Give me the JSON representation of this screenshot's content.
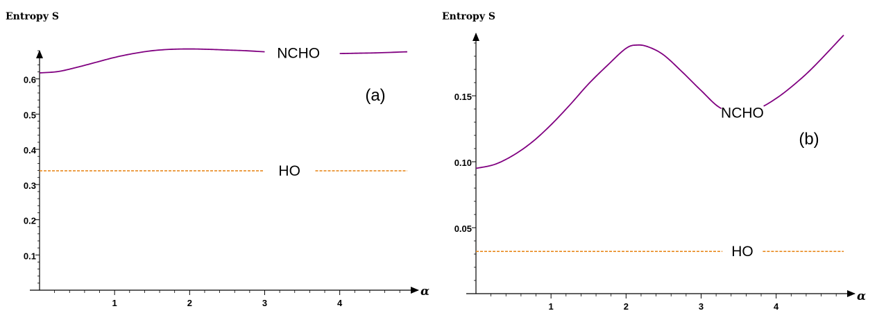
{
  "chart_data": [
    {
      "type": "line",
      "panel_label": "(a)",
      "ylabel": "Entropy   S",
      "xlabel": "α",
      "xlim": [
        0,
        4.9
      ],
      "ylim": [
        0,
        0.69
      ],
      "x_ticks": [
        1,
        2,
        3,
        4
      ],
      "y_ticks": [
        0.1,
        0.2,
        0.3,
        0.4,
        0.5,
        0.6
      ],
      "y_tick_labels": [
        "0.1",
        "0.2",
        "0.3",
        "0.4",
        "0.5",
        "0.6"
      ],
      "x_tick_labels": [
        "1",
        "2",
        "3",
        "4"
      ],
      "series": [
        {
          "name": "NCHO",
          "color": "#800080",
          "style": "solid",
          "x": [
            0,
            0.25,
            0.5,
            0.75,
            1.0,
            1.25,
            1.5,
            1.75,
            2.0,
            2.25,
            2.5,
            2.75,
            3.0,
            3.25,
            3.5,
            3.75,
            4.0,
            4.25,
            4.5,
            4.9
          ],
          "y": [
            0.617,
            0.621,
            0.633,
            0.647,
            0.661,
            0.672,
            0.68,
            0.684,
            0.685,
            0.684,
            0.682,
            0.68,
            0.677,
            0.675,
            0.673,
            0.672,
            0.672,
            0.673,
            0.674,
            0.677
          ],
          "label_at_x": 3.45,
          "label_gap": [
            3.0,
            3.98
          ]
        },
        {
          "name": "HO",
          "color": "#e8891e",
          "style": "dashed",
          "x": [
            0,
            4.9
          ],
          "y": [
            0.339,
            0.339
          ],
          "label_at_x": 3.33,
          "label_gap": [
            3.0,
            3.65
          ]
        }
      ]
    },
    {
      "type": "line",
      "panel_label": "(b)",
      "ylabel": "Entropy   S",
      "xlabel": "α",
      "xlim": [
        0,
        4.9
      ],
      "ylim": [
        0,
        0.2
      ],
      "x_ticks": [
        1,
        2,
        3,
        4
      ],
      "y_ticks": [
        0.05,
        0.1,
        0.15
      ],
      "y_tick_labels": [
        "0.05",
        "0.10",
        "0.15"
      ],
      "x_tick_labels": [
        "1",
        "2",
        "3",
        "4"
      ],
      "series": [
        {
          "name": "NCHO",
          "color": "#800080",
          "style": "solid",
          "x": [
            0,
            0.25,
            0.5,
            0.75,
            1.0,
            1.25,
            1.5,
            1.75,
            2.0,
            2.15,
            2.3,
            2.5,
            2.75,
            3.0,
            3.25,
            3.5,
            3.75,
            4.0,
            4.25,
            4.5,
            4.9
          ],
          "y": [
            0.095,
            0.098,
            0.105,
            0.115,
            0.128,
            0.143,
            0.159,
            0.173,
            0.186,
            0.1885,
            0.187,
            0.181,
            0.168,
            0.154,
            0.141,
            0.137,
            0.14,
            0.148,
            0.159,
            0.172,
            0.196
          ],
          "label_at_x": 3.55,
          "label_gap": [
            3.28,
            3.82
          ]
        },
        {
          "name": "HO",
          "color": "#e8891e",
          "style": "dashed",
          "x": [
            0,
            4.9
          ],
          "y": [
            0.032,
            0.032
          ],
          "label_at_x": 3.55,
          "label_gap": [
            3.33,
            3.78
          ]
        }
      ]
    }
  ]
}
